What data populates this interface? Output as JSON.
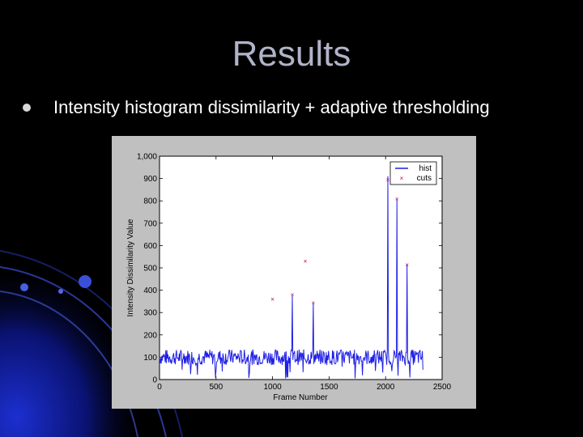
{
  "slide": {
    "title": "Results",
    "bullet": "Intensity histogram dissimilarity + adaptive thresholding"
  },
  "colors": {
    "background": "#000000",
    "title": "#b0b4c8",
    "series_hist": "#1f1fe6",
    "series_cuts": "#c0005a",
    "figure_bg": "#c0c0c0"
  },
  "chart_data": {
    "type": "line",
    "title": "",
    "xlabel": "Frame Number",
    "ylabel": "Intensity Dissimilarity Value",
    "xlim": [
      0,
      2500
    ],
    "ylim": [
      0,
      1000
    ],
    "xticks": [
      0,
      500,
      1000,
      1500,
      2000,
      2500
    ],
    "yticks": [
      0,
      100,
      200,
      300,
      400,
      500,
      600,
      700,
      800,
      900,
      1000
    ],
    "ytick_labels": [
      "0",
      "100",
      "200",
      "300",
      "400",
      "500",
      "600",
      "700",
      "800",
      "900",
      "1,000"
    ],
    "grid": false,
    "legend": "top-right",
    "series": [
      {
        "name": "hist",
        "style": "line",
        "x_end": 2330,
        "baseline": 100,
        "spikes": [
          {
            "x": 1175,
            "y": 375
          },
          {
            "x": 1360,
            "y": 340
          },
          {
            "x": 2020,
            "y": 910
          },
          {
            "x": 2100,
            "y": 805
          },
          {
            "x": 2190,
            "y": 515
          }
        ]
      },
      {
        "name": "cuts",
        "style": "markers",
        "x": [
          1000,
          1175,
          1290,
          1360,
          2020,
          2100,
          2190
        ],
        "y": [
          360,
          380,
          530,
          345,
          895,
          810,
          515
        ]
      }
    ]
  }
}
